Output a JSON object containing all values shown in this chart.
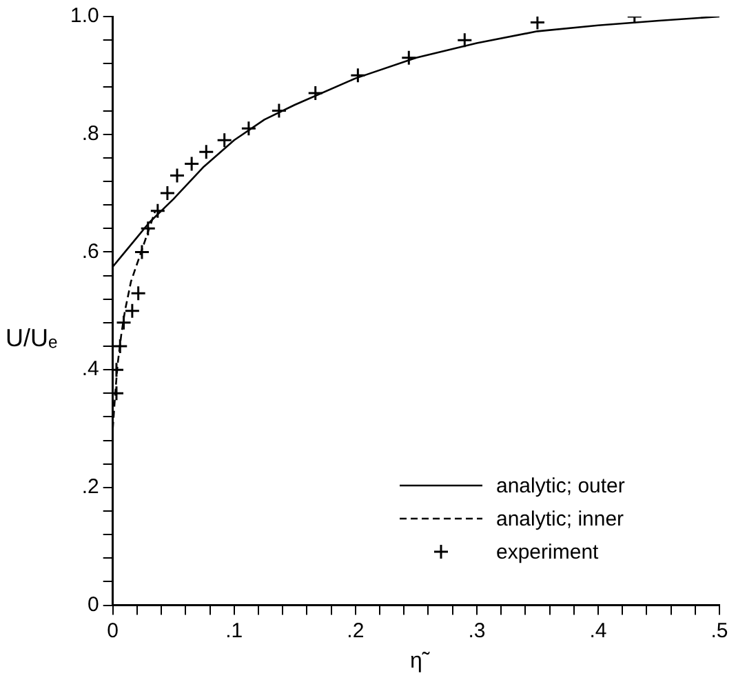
{
  "chart_data": {
    "type": "line",
    "xlabel": "η̃",
    "ylabel": "U/Uₑ",
    "xlim": [
      0,
      0.5
    ],
    "ylim": [
      0,
      1
    ],
    "xticks": [
      0,
      {
        "value": 0.02,
        "label": null
      },
      {
        "value": 0.04,
        "label": null
      },
      {
        "value": 0.06,
        "label": null
      },
      {
        "value": 0.08,
        "label": null
      },
      {
        "value": 0.1,
        "label": ".1"
      },
      {
        "value": 0.12,
        "label": null
      },
      {
        "value": 0.14,
        "label": null
      },
      {
        "value": 0.16,
        "label": null
      },
      {
        "value": 0.18,
        "label": null
      },
      {
        "value": 0.2,
        "label": ".2"
      },
      {
        "value": 0.22,
        "label": null
      },
      {
        "value": 0.24,
        "label": null
      },
      {
        "value": 0.26,
        "label": null
      },
      {
        "value": 0.28,
        "label": null
      },
      {
        "value": 0.3,
        "label": ".3"
      },
      {
        "value": 0.32,
        "label": null
      },
      {
        "value": 0.34,
        "label": null
      },
      {
        "value": 0.36,
        "label": null
      },
      {
        "value": 0.38,
        "label": null
      },
      {
        "value": 0.4,
        "label": ".4"
      },
      {
        "value": 0.42,
        "label": null
      },
      {
        "value": 0.44,
        "label": null
      },
      {
        "value": 0.46,
        "label": null
      },
      {
        "value": 0.48,
        "label": null
      },
      {
        "value": 0.5,
        "label": ".5"
      }
    ],
    "yticks": [
      0,
      {
        "value": 0.04,
        "label": null
      },
      {
        "value": 0.08,
        "label": null
      },
      {
        "value": 0.12,
        "label": null
      },
      {
        "value": 0.16,
        "label": null
      },
      {
        "value": 0.2,
        "label": ".2"
      },
      {
        "value": 0.24,
        "label": null
      },
      {
        "value": 0.28,
        "label": null
      },
      {
        "value": 0.32,
        "label": null
      },
      {
        "value": 0.36,
        "label": null
      },
      {
        "value": 0.4,
        "label": ".4"
      },
      {
        "value": 0.44,
        "label": null
      },
      {
        "value": 0.48,
        "label": null
      },
      {
        "value": 0.52,
        "label": null
      },
      {
        "value": 0.56,
        "label": null
      },
      {
        "value": 0.6,
        "label": ".6"
      },
      {
        "value": 0.64,
        "label": null
      },
      {
        "value": 0.68,
        "label": null
      },
      {
        "value": 0.72,
        "label": null
      },
      {
        "value": 0.76,
        "label": null
      },
      {
        "value": 0.8,
        "label": ".8"
      },
      {
        "value": 0.84,
        "label": null
      },
      {
        "value": 0.88,
        "label": null
      },
      {
        "value": 0.92,
        "label": null
      },
      {
        "value": 0.96,
        "label": null
      },
      {
        "value": 1.0,
        "label": "1.0"
      }
    ],
    "grid": false,
    "legend": "bottom right",
    "series": [
      {
        "name": "analytic; outer",
        "type": "line",
        "color": "#000000",
        "line_style": "solid",
        "marker": "none",
        "x": [
          0,
          0.01,
          0.02,
          0.03,
          0.05,
          0.075,
          0.1,
          0.125,
          0.15,
          0.2,
          0.25,
          0.3,
          0.35,
          0.4,
          0.45,
          0.5
        ],
        "values": [
          0.575,
          0.6,
          0.625,
          0.65,
          0.69,
          0.745,
          0.79,
          0.825,
          0.85,
          0.895,
          0.93,
          0.955,
          0.975,
          0.985,
          0.993,
          1.0
        ]
      },
      {
        "name": "analytic; inner",
        "type": "line",
        "color": "#000000",
        "line_style": "dashed",
        "marker": "none",
        "x": [
          0,
          0.002,
          0.004,
          0.007,
          0.01,
          0.015,
          0.02,
          0.025,
          0.03,
          0.035
        ],
        "values": [
          0.3,
          0.36,
          0.41,
          0.46,
          0.5,
          0.55,
          0.58,
          0.61,
          0.64,
          0.67
        ]
      },
      {
        "name": "experiment",
        "type": "scatter",
        "color": "#000000",
        "marker": "cross",
        "x": [
          0.003,
          0.003,
          0.006,
          0.009,
          0.016,
          0.021,
          0.024,
          0.029,
          0.037,
          0.045,
          0.053,
          0.065,
          0.077,
          0.092,
          0.112,
          0.137,
          0.167,
          0.202,
          0.244,
          0.29,
          0.35,
          0.43
        ],
        "values": [
          0.36,
          0.4,
          0.44,
          0.48,
          0.5,
          0.53,
          0.6,
          0.64,
          0.67,
          0.7,
          0.73,
          0.75,
          0.77,
          0.79,
          0.81,
          0.84,
          0.87,
          0.9,
          0.93,
          0.96,
          0.99,
          1.0
        ]
      }
    ]
  }
}
